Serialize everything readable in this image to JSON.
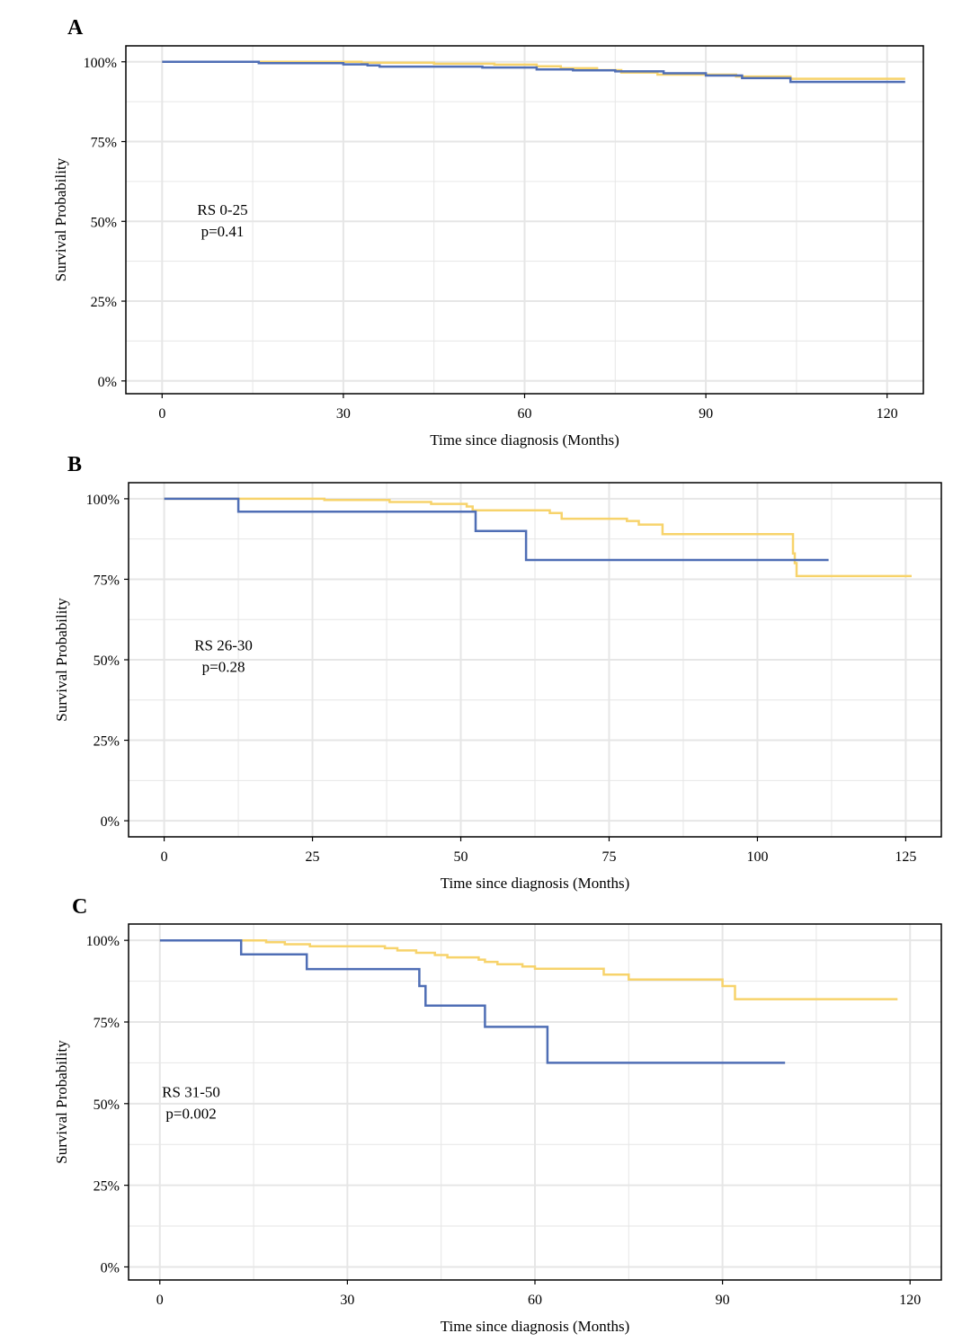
{
  "colors": {
    "series_a": "#f7d36b",
    "series_b": "#4f6eb5",
    "grid": "#e6e6e6",
    "frame": "#000000"
  },
  "chart_data": [
    {
      "type": "line",
      "panel_label": "A",
      "xlabel": "Time since diagnosis (Months)",
      "ylabel": "Survival Probability",
      "xlim": [
        -6,
        126
      ],
      "ylim": [
        -4,
        105
      ],
      "xticks": [
        0,
        30,
        60,
        90,
        120
      ],
      "xtick_labels": [
        "0",
        "30",
        "60",
        "90",
        "120"
      ],
      "xminor": [
        15,
        45,
        75,
        105
      ],
      "yticks": [
        0,
        25,
        50,
        75,
        100
      ],
      "ytick_labels": [
        "0%",
        "25%",
        "50%",
        "75%",
        "100%"
      ],
      "yminor": [
        12.5,
        37.5,
        62.5,
        87.5
      ],
      "annotation": {
        "lines": [
          "RS 0-25",
          "p=0.41"
        ],
        "x": 10,
        "y": 52
      },
      "series": [
        {
          "color_key": "series_a",
          "steps": [
            [
              0,
              100
            ],
            [
              33,
              99.7
            ],
            [
              45,
              99.4
            ],
            [
              55,
              99.1
            ],
            [
              62,
              98.6
            ],
            [
              66,
              98.0
            ],
            [
              72,
              97.4
            ],
            [
              76,
              96.6
            ],
            [
              82,
              96.0
            ],
            [
              95,
              95.4
            ],
            [
              104,
              94.7
            ],
            [
              123,
              94.7
            ]
          ]
        },
        {
          "color_key": "series_b",
          "steps": [
            [
              0,
              100
            ],
            [
              16,
              99.6
            ],
            [
              30,
              99.2
            ],
            [
              34,
              98.9
            ],
            [
              36,
              98.5
            ],
            [
              53,
              98.2
            ],
            [
              62,
              97.6
            ],
            [
              68,
              97.3
            ],
            [
              75,
              97.0
            ],
            [
              83,
              96.4
            ],
            [
              90,
              95.7
            ],
            [
              96,
              94.9
            ],
            [
              104,
              93.7
            ],
            [
              123,
              93.7
            ]
          ]
        }
      ]
    },
    {
      "type": "line",
      "panel_label": "B",
      "xlabel": "Time since diagnosis (Months)",
      "ylabel": "Survival Probability",
      "xlim": [
        -6,
        131
      ],
      "ylim": [
        -5,
        105
      ],
      "xticks": [
        0,
        25,
        50,
        75,
        100,
        125
      ],
      "xtick_labels": [
        "0",
        "25",
        "50",
        "75",
        "100",
        "125"
      ],
      "xminor": [
        12.5,
        37.5,
        62.5,
        87.5,
        112.5
      ],
      "yticks": [
        0,
        25,
        50,
        75,
        100
      ],
      "ytick_labels": [
        "0%",
        "25%",
        "50%",
        "75%",
        "100%"
      ],
      "yminor": [
        12.5,
        37.5,
        62.5,
        87.5
      ],
      "annotation": {
        "lines": [
          "RS 26-30",
          "p=0.28"
        ],
        "x": 10,
        "y": 53
      },
      "series": [
        {
          "color_key": "series_a",
          "steps": [
            [
              0,
              100
            ],
            [
              27,
              99.6
            ],
            [
              38,
              99.0
            ],
            [
              45,
              98.4
            ],
            [
              51,
              97.6
            ],
            [
              52,
              96.4
            ],
            [
              65,
              95.6
            ],
            [
              67,
              93.8
            ],
            [
              78,
              93.1
            ],
            [
              80,
              92.0
            ],
            [
              84,
              89.0
            ],
            [
              106,
              83.0
            ],
            [
              106.3,
              80.0
            ],
            [
              106.6,
              76.0
            ],
            [
              126,
              76.0
            ]
          ]
        },
        {
          "color_key": "series_b",
          "steps": [
            [
              0,
              100
            ],
            [
              12.5,
              96.0
            ],
            [
              52.5,
              90.0
            ],
            [
              61,
              81.0
            ],
            [
              112,
              81.0
            ]
          ]
        }
      ]
    },
    {
      "type": "line",
      "panel_label": "C",
      "xlabel": "Time since diagnosis (Months)",
      "ylabel": "Survival Probability",
      "xlim": [
        -5,
        125
      ],
      "ylim": [
        -4,
        105
      ],
      "xticks": [
        0,
        30,
        60,
        90,
        120
      ],
      "xtick_labels": [
        "0",
        "30",
        "60",
        "90",
        "120"
      ],
      "xminor": [
        15,
        45,
        75,
        105
      ],
      "yticks": [
        0,
        25,
        50,
        75,
        100
      ],
      "ytick_labels": [
        "0%",
        "25%",
        "50%",
        "75%",
        "100%"
      ],
      "yminor": [
        12.5,
        37.5,
        62.5,
        87.5
      ],
      "annotation": {
        "lines": [
          "RS 31-50",
          "p=0.002"
        ],
        "x": 5,
        "y": 52
      },
      "series": [
        {
          "color_key": "series_a",
          "steps": [
            [
              0,
              100
            ],
            [
              17,
              99.4
            ],
            [
              20,
              98.8
            ],
            [
              24,
              98.2
            ],
            [
              36,
              97.6
            ],
            [
              38,
              96.9
            ],
            [
              41,
              96.2
            ],
            [
              44,
              95.5
            ],
            [
              46,
              94.8
            ],
            [
              51,
              94.1
            ],
            [
              52,
              93.4
            ],
            [
              54,
              92.7
            ],
            [
              58,
              92.0
            ],
            [
              60,
              91.3
            ],
            [
              71,
              89.5
            ],
            [
              75,
              88.0
            ],
            [
              90,
              86.0
            ],
            [
              92,
              82.0
            ],
            [
              118,
              82.0
            ]
          ]
        },
        {
          "color_key": "series_b",
          "steps": [
            [
              0,
              100
            ],
            [
              13,
              95.7
            ],
            [
              23.5,
              91.2
            ],
            [
              41.5,
              86.0
            ],
            [
              42.5,
              80.0
            ],
            [
              52,
              73.5
            ],
            [
              62,
              62.5
            ],
            [
              100,
              62.5
            ]
          ]
        }
      ]
    }
  ]
}
